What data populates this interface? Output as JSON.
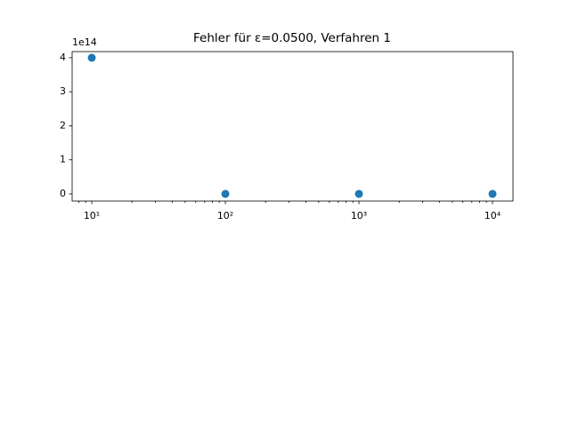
{
  "chart_data": {
    "type": "scatter",
    "title": "Fehler für ε=0.0500, Verfahren 1",
    "y_offset_label": "1e14",
    "x": [
      10,
      100,
      1000,
      10000
    ],
    "series": [
      {
        "color": "#1f77b4",
        "values": [
          400000000000000,
          0,
          0,
          0
        ]
      }
    ],
    "xscale": "log",
    "xlim": [
      7.13,
      14230
    ],
    "xticks": [
      {
        "value": 10,
        "label": "10¹"
      },
      {
        "value": 100,
        "label": "10²"
      },
      {
        "value": 1000,
        "label": "10³"
      },
      {
        "value": 10000,
        "label": "10⁴"
      }
    ],
    "xminorticks": [
      8,
      9,
      20,
      30,
      40,
      50,
      60,
      70,
      80,
      90,
      200,
      300,
      400,
      500,
      600,
      700,
      800,
      900,
      2000,
      3000,
      4000,
      5000,
      6000,
      7000,
      8000,
      9000
    ],
    "ylim": [
      -21000000000000,
      418000000000000
    ],
    "yticks": [
      {
        "value": 0,
        "label": "0"
      },
      {
        "value": 100000000000000,
        "label": "1"
      },
      {
        "value": 200000000000000,
        "label": "2"
      },
      {
        "value": 300000000000000,
        "label": "3"
      },
      {
        "value": 400000000000000,
        "label": "4"
      }
    ]
  }
}
